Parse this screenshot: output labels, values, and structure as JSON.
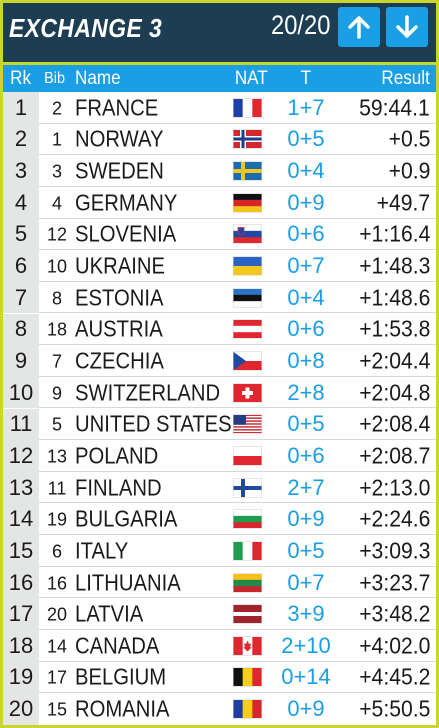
{
  "header": {
    "title": "EXCHANGE 3",
    "counter": "20/20",
    "up_icon": "arrow-up-icon",
    "down_icon": "arrow-down-icon"
  },
  "columns": {
    "rank": "Rk",
    "bib": "Bib",
    "name": "Name",
    "nat": "NAT",
    "t": "T",
    "result": "Result"
  },
  "colors": {
    "header_bg": "#1d3d52",
    "accent": "#1a9ee4",
    "frame": "#c8d62e",
    "rank_bg": "#e4e5e5"
  },
  "rows": [
    {
      "rank": "1",
      "bib": "2",
      "name": "FRANCE",
      "flag": "france",
      "t": "1+7",
      "result": "59:44.1"
    },
    {
      "rank": "2",
      "bib": "1",
      "name": "NORWAY",
      "flag": "norway",
      "t": "0+5",
      "result": "+0.5"
    },
    {
      "rank": "3",
      "bib": "3",
      "name": "SWEDEN",
      "flag": "sweden",
      "t": "0+4",
      "result": "+0.9"
    },
    {
      "rank": "4",
      "bib": "4",
      "name": "GERMANY",
      "flag": "germany",
      "t": "0+9",
      "result": "+49.7"
    },
    {
      "rank": "5",
      "bib": "12",
      "name": "SLOVENIA",
      "flag": "slovenia",
      "t": "0+6",
      "result": "+1:16.4"
    },
    {
      "rank": "6",
      "bib": "10",
      "name": "UKRAINE",
      "flag": "ukraine",
      "t": "0+7",
      "result": "+1:48.3"
    },
    {
      "rank": "7",
      "bib": "8",
      "name": "ESTONIA",
      "flag": "estonia",
      "t": "0+4",
      "result": "+1:48.6"
    },
    {
      "rank": "8",
      "bib": "18",
      "name": "AUSTRIA",
      "flag": "austria",
      "t": "0+6",
      "result": "+1:53.8"
    },
    {
      "rank": "9",
      "bib": "7",
      "name": "CZECHIA",
      "flag": "czechia",
      "t": "0+8",
      "result": "+2:04.4"
    },
    {
      "rank": "10",
      "bib": "9",
      "name": "SWITZERLAND",
      "flag": "switzerland",
      "t": "2+8",
      "result": "+2:04.8"
    },
    {
      "rank": "11",
      "bib": "5",
      "name": "UNITED STATES",
      "flag": "united-states",
      "t": "0+5",
      "result": "+2:08.4"
    },
    {
      "rank": "12",
      "bib": "13",
      "name": "POLAND",
      "flag": "poland",
      "t": "0+6",
      "result": "+2:08.7"
    },
    {
      "rank": "13",
      "bib": "11",
      "name": "FINLAND",
      "flag": "finland",
      "t": "2+7",
      "result": "+2:13.0"
    },
    {
      "rank": "14",
      "bib": "19",
      "name": "BULGARIA",
      "flag": "bulgaria",
      "t": "0+9",
      "result": "+2:24.6"
    },
    {
      "rank": "15",
      "bib": "6",
      "name": "ITALY",
      "flag": "italy",
      "t": "0+5",
      "result": "+3:09.3"
    },
    {
      "rank": "16",
      "bib": "16",
      "name": "LITHUANIA",
      "flag": "lithuania",
      "t": "0+7",
      "result": "+3:23.7"
    },
    {
      "rank": "17",
      "bib": "20",
      "name": "LATVIA",
      "flag": "latvia",
      "t": "3+9",
      "result": "+3:48.2"
    },
    {
      "rank": "18",
      "bib": "14",
      "name": "CANADA",
      "flag": "canada",
      "t": "2+10",
      "result": "+4:02.0"
    },
    {
      "rank": "19",
      "bib": "17",
      "name": "BELGIUM",
      "flag": "belgium",
      "t": "0+14",
      "result": "+4:45.2"
    },
    {
      "rank": "20",
      "bib": "15",
      "name": "ROMANIA",
      "flag": "romania",
      "t": "0+9",
      "result": "+5:50.5"
    }
  ]
}
